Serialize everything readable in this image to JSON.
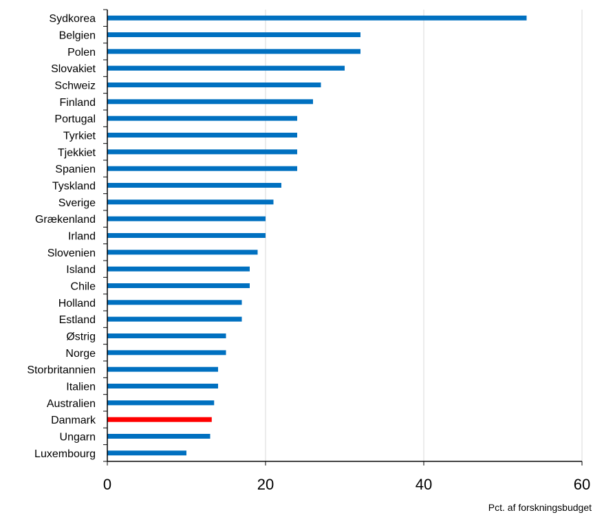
{
  "chart_data": {
    "type": "bar",
    "orientation": "horizontal",
    "categories": [
      "Sydkorea",
      "Belgien",
      "Polen",
      "Slovakiet",
      "Schweiz",
      "Finland",
      "Portugal",
      "Tyrkiet",
      "Tjekkiet",
      "Spanien",
      "Tyskland",
      "Sverige",
      "Grækenland",
      "Irland",
      "Slovenien",
      "Island",
      "Chile",
      "Holland",
      "Estland",
      "Østrig",
      "Norge",
      "Storbritannien",
      "Italien",
      "Australien",
      "Danmark",
      "Ungarn",
      "Luxembourg"
    ],
    "values": [
      53,
      32,
      32,
      30,
      27,
      26,
      24,
      24,
      24,
      24,
      22,
      21,
      20,
      20,
      19,
      18,
      18,
      17,
      17,
      15,
      15,
      14,
      14,
      13.5,
      13.2,
      13,
      10
    ],
    "highlight": {
      "category": "Danmark",
      "color": "#ff0000"
    },
    "bar_color": "#0070c0",
    "xlim": [
      0,
      60
    ],
    "xticks": [
      0,
      20,
      40,
      60
    ],
    "xlabel": "Pct. af forskningsbudget",
    "grid": "vertical",
    "grid_color": "#d9d9d9"
  }
}
